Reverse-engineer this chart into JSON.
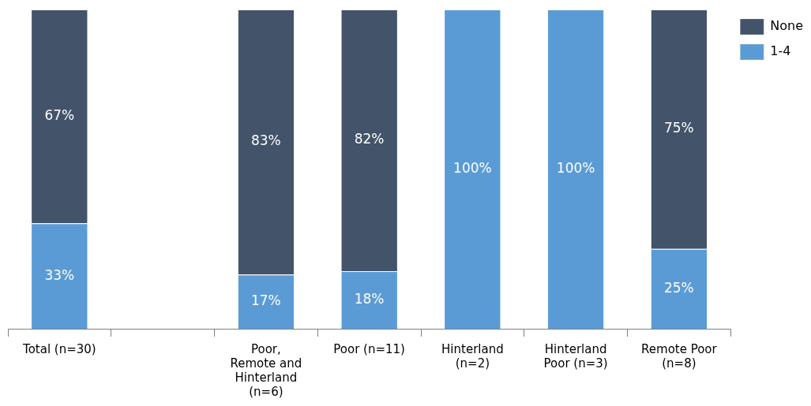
{
  "chart_data": {
    "type": "bar",
    "stacked": true,
    "categories": [
      "Total (n=30)",
      null,
      "Poor, Remote and Hinterland (n=6)",
      "Poor (n=11)",
      "Hinterland (n=2)",
      "Hinterland Poor (n=3)",
      "Remote Poor (n=8)"
    ],
    "series": [
      {
        "name": "1-4",
        "color": "#5b9bd5",
        "values": [
          33,
          null,
          17,
          18,
          100,
          100,
          25
        ],
        "value_labels": [
          "33%",
          null,
          "17%",
          "18%",
          "100%",
          "100%",
          "25%"
        ]
      },
      {
        "name": "None",
        "color": "#435369",
        "values": [
          67,
          null,
          83,
          82,
          null,
          null,
          75
        ],
        "value_labels": [
          "67%",
          null,
          "83%",
          "82%",
          null,
          null,
          "75%"
        ]
      }
    ],
    "legend": "top right",
    "grid": false
  }
}
